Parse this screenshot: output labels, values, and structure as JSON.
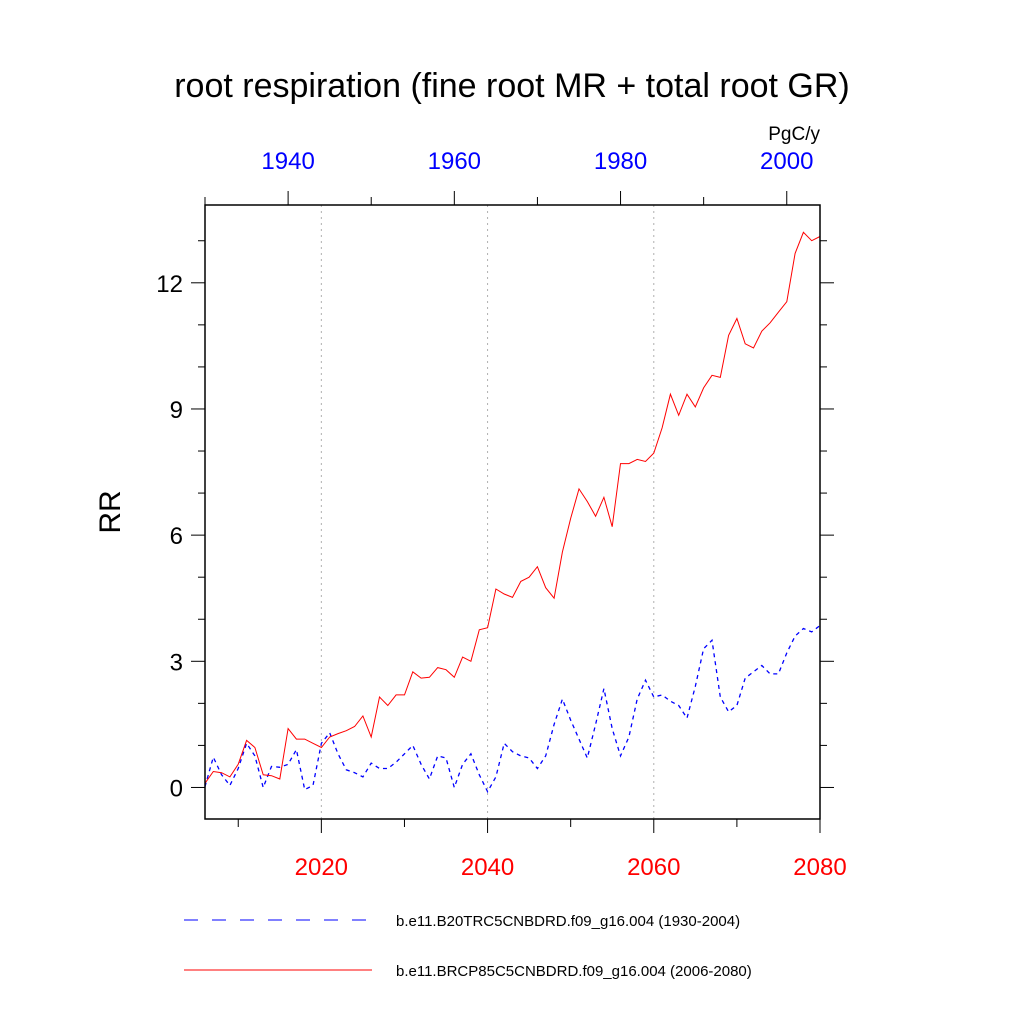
{
  "chart_data": {
    "type": "line",
    "title": "root respiration (fine root MR + total root GR)",
    "units": "PgC/y",
    "ylabel": "RR",
    "xlabel": "",
    "ylim": [
      -0.75,
      13.85
    ],
    "yticks": [
      0,
      3,
      6,
      9,
      12
    ],
    "grid": "vertical dotted lines at 2020, 2040, 2060",
    "bottom_axis": {
      "range": [
        2006,
        2080
      ],
      "ticks": [
        2020,
        2040,
        2060,
        2080
      ],
      "color": "#ff0000"
    },
    "top_axis": {
      "range": [
        1930,
        2004
      ],
      "ticks": [
        1940,
        1960,
        1980,
        2000
      ],
      "color": "#0000ff"
    },
    "legend_placement": "bottom",
    "series": [
      {
        "name": "b.e11.B20TRC5CNBDRD.f09_g16.004 (1930-2004)",
        "axis": "top",
        "color": "#0000ff",
        "style": "dashed",
        "x_start": 1930,
        "values": [
          0.02,
          0.72,
          0.3,
          0.05,
          0.45,
          1.05,
          0.75,
          0.0,
          0.5,
          0.48,
          0.55,
          0.9,
          -0.05,
          0.05,
          1.05,
          1.3,
          0.8,
          0.42,
          0.35,
          0.25,
          0.58,
          0.45,
          0.45,
          0.6,
          0.8,
          1.0,
          0.55,
          0.2,
          0.75,
          0.7,
          0.0,
          0.55,
          0.8,
          0.3,
          -0.1,
          0.25,
          1.05,
          0.85,
          0.75,
          0.7,
          0.45,
          0.75,
          1.5,
          2.1,
          1.6,
          1.15,
          0.7,
          1.5,
          2.35,
          1.4,
          0.75,
          1.2,
          2.1,
          2.55,
          2.15,
          2.2,
          2.05,
          1.95,
          1.65,
          2.4,
          3.3,
          3.5,
          2.15,
          1.8,
          1.95,
          2.6,
          2.75,
          2.9,
          2.7,
          2.7,
          3.2,
          3.6,
          3.78,
          3.7,
          3.85
        ]
      },
      {
        "name": "b.e11.BRCP85C5CNBDRD.f09_g16.004 (2006-2080)",
        "axis": "bottom",
        "color": "#ff0000",
        "style": "solid",
        "x_start": 2006,
        "values": [
          0.1,
          0.38,
          0.35,
          0.25,
          0.55,
          1.12,
          0.95,
          0.3,
          0.28,
          0.2,
          1.4,
          1.15,
          1.15,
          1.05,
          0.95,
          1.2,
          1.28,
          1.35,
          1.45,
          1.7,
          1.2,
          2.15,
          1.95,
          2.2,
          2.2,
          2.75,
          2.6,
          2.62,
          2.85,
          2.8,
          2.62,
          3.1,
          3.0,
          3.75,
          3.8,
          4.72,
          4.6,
          4.52,
          4.9,
          5.0,
          5.25,
          4.75,
          4.5,
          5.6,
          6.4,
          7.1,
          6.8,
          6.45,
          6.9,
          6.2,
          7.7,
          7.7,
          7.8,
          7.75,
          7.95,
          8.55,
          9.35,
          8.85,
          9.35,
          9.05,
          9.5,
          9.8,
          9.75,
          10.75,
          11.15,
          10.55,
          10.45,
          10.85,
          11.05,
          11.3,
          11.55,
          12.7,
          13.2,
          13.0,
          13.1
        ]
      }
    ]
  }
}
